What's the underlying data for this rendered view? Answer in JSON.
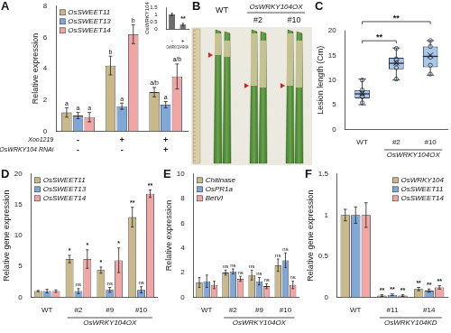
{
  "chart_data": [
    {
      "panel": "A",
      "type": "bar",
      "y_label": "Relative expression",
      "categories": [
        null,
        null,
        null
      ],
      "x_table": [
        {
          "label": "Xoo1219",
          "values": [
            "-",
            "+",
            "+"
          ]
        },
        {
          "label": "OsWRKY104 RNAi",
          "values": [
            "-",
            "-",
            "+"
          ]
        }
      ],
      "series": [
        {
          "name": "OsSWEET11",
          "color": "#c8b88a",
          "values": [
            1.2,
            4.2,
            2.5
          ],
          "errors": [
            0.3,
            0.6,
            0.3
          ],
          "annotations": [
            "a",
            "b",
            "a/b"
          ]
        },
        {
          "name": "OsSWEET13",
          "color": "#7fa7d8",
          "values": [
            1.0,
            1.6,
            1.7
          ],
          "errors": [
            0.2,
            0.2,
            0.2
          ],
          "annotations": [
            "a",
            "a",
            "a"
          ]
        },
        {
          "name": "OsSWEET14",
          "color": "#f0a6a4",
          "values": [
            0.9,
            6.2,
            3.5
          ],
          "errors": [
            0.3,
            0.6,
            0.8
          ],
          "annotations": [
            "a",
            "b",
            "a/b"
          ]
        }
      ],
      "ylim": [
        0,
        8
      ],
      "yticks": [
        0,
        2,
        4,
        6,
        8
      ],
      "grid": false,
      "legend": "upper left",
      "inset": {
        "type": "bar",
        "y_label": "OsWRKY104",
        "x_label": "OsWRKY104 RNAi",
        "categories": [
          "-",
          "+"
        ],
        "values": [
          1.0,
          0.3
        ],
        "errors": [
          0.08,
          0.08
        ],
        "annotations": [
          null,
          "**"
        ],
        "color": "#6d6d6d",
        "ylim": [
          0,
          1.5
        ],
        "yticks": [
          0,
          0.5,
          1,
          1.5
        ],
        "grid": false
      }
    },
    {
      "panel": "B",
      "type": "photo",
      "lanes": [
        "WT",
        "#2",
        "#10"
      ],
      "group_label": "OsWRKY104OX",
      "group_lanes": [
        "#2",
        "#10"
      ]
    },
    {
      "panel": "C",
      "type": "box",
      "y_label": "Lesion length (Cm)",
      "categories": [
        "WT",
        "#2",
        "#10"
      ],
      "x_group": {
        "label": "OsWRKY104OX",
        "from": "#2",
        "to": "#10"
      },
      "color": "#a9c8e8",
      "boxes": [
        {
          "min": 5.0,
          "q1": 6.3,
          "median": 7.2,
          "q3": 8.0,
          "max": 10.2,
          "mean": 7.3,
          "points": [
            5.4,
            6.6,
            7.2,
            8.0,
            10.0
          ]
        },
        {
          "min": 10.0,
          "q1": 12.2,
          "median": 13.4,
          "q3": 14.5,
          "max": 16.5,
          "mean": 13.5,
          "points": [
            10.2,
            12.5,
            13.4,
            14.3,
            16.4
          ]
        },
        {
          "min": 11.0,
          "q1": 12.6,
          "median": 14.8,
          "q3": 16.8,
          "max": 18.0,
          "mean": 15.0,
          "points": [
            11.2,
            13.0,
            14.6,
            16.8,
            18.0
          ]
        }
      ],
      "comparisons": [
        {
          "from": "WT",
          "to": "#2",
          "label": "**"
        },
        {
          "from": "WT",
          "to": "#10",
          "label": "**"
        }
      ],
      "ylim": [
        0,
        20
      ],
      "yticks": [
        0,
        5,
        10,
        15,
        20
      ],
      "grid": false
    },
    {
      "panel": "D",
      "type": "bar",
      "y_label": "Relative gene expression",
      "categories": [
        "WT",
        "#2",
        "#9",
        "#10"
      ],
      "x_group": {
        "label": "OsWRKY104OX",
        "from": "#2",
        "to": "#10"
      },
      "series": [
        {
          "name": "OsSWEET11",
          "color": "#c8b88a",
          "values": [
            1.0,
            6.2,
            4.4,
            13.0
          ],
          "errors": [
            0.1,
            0.6,
            0.5,
            1.6
          ],
          "annotations": [
            null,
            "*",
            "*",
            "**"
          ]
        },
        {
          "name": "OsSWEET13",
          "color": "#7fa7d8",
          "values": [
            1.0,
            1.0,
            1.2,
            1.2
          ],
          "errors": [
            0.3,
            0.4,
            0.4,
            0.5
          ],
          "annotations": [
            null,
            "ns",
            "ns",
            "ns"
          ]
        },
        {
          "name": "OsSWEET14",
          "color": "#f0a6a4",
          "values": [
            1.0,
            6.2,
            6.0,
            16.8
          ],
          "errors": [
            0.2,
            1.5,
            2.0,
            0.6
          ],
          "annotations": [
            null,
            "*",
            "*",
            "**"
          ]
        }
      ],
      "ylim": [
        0,
        20
      ],
      "yticks": [
        0,
        5,
        10,
        15,
        20
      ],
      "grid": false,
      "legend": "upper left"
    },
    {
      "panel": "E",
      "type": "bar",
      "y_label": "Relative expression",
      "categories": [
        "WT",
        "#2",
        "#9",
        "#10"
      ],
      "x_group": {
        "label": "OsWRKY104OX",
        "from": "#2",
        "to": "#10"
      },
      "series": [
        {
          "name": "Chitinase",
          "color": "#c8b88a",
          "values": [
            1.2,
            2.0,
            1.8,
            2.6
          ],
          "errors": [
            0.4,
            0.2,
            0.4,
            0.5
          ],
          "annotations": [
            null,
            "ns",
            "ns",
            "ns"
          ]
        },
        {
          "name": "OsPR1a",
          "color": "#7fa7d8",
          "values": [
            1.3,
            2.1,
            1.3,
            3.0
          ],
          "errors": [
            0.5,
            0.2,
            0.3,
            0.6
          ],
          "annotations": [
            null,
            "ns",
            "ns",
            "ns"
          ]
        },
        {
          "name": "BetVI",
          "color": "#f0a6a4",
          "values": [
            1.0,
            1.5,
            0.9,
            1.0
          ],
          "errors": [
            0.3,
            0.2,
            0.2,
            0.3
          ],
          "annotations": [
            null,
            "ns",
            "ns",
            "ns"
          ]
        }
      ],
      "ylim": [
        0,
        10
      ],
      "yticks": [
        0,
        2,
        4,
        6,
        8,
        10
      ],
      "grid": false,
      "legend": "upper left"
    },
    {
      "panel": "F",
      "type": "bar",
      "y_label": "Relative gene expression",
      "categories": [
        "WT",
        "#11",
        "#14"
      ],
      "x_group": {
        "label": "OsWRKY104KD",
        "from": "#11",
        "to": "#14"
      },
      "series": [
        {
          "name": "OsWRKY104",
          "color": "#c8b88a",
          "values": [
            1.0,
            0.02,
            0.1
          ],
          "errors": [
            0.07,
            0.01,
            0.02
          ],
          "annotations": [
            null,
            "**",
            "**"
          ]
        },
        {
          "name": "OsSWEET11",
          "color": "#7fa7d8",
          "values": [
            1.0,
            0.03,
            0.08
          ],
          "errors": [
            0.1,
            0.01,
            0.02
          ],
          "annotations": [
            null,
            "**",
            "**"
          ]
        },
        {
          "name": "OsSWEET14",
          "color": "#f0a6a4",
          "values": [
            1.0,
            0.02,
            0.12
          ],
          "errors": [
            0.15,
            0.01,
            0.02
          ],
          "annotations": [
            null,
            "**",
            "**"
          ]
        }
      ],
      "ylim": [
        0,
        1.5
      ],
      "yticks": [
        0,
        0.5,
        1,
        1.5
      ],
      "grid": false,
      "legend": "upper right"
    }
  ]
}
